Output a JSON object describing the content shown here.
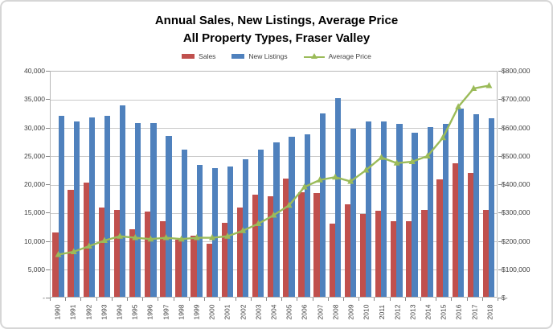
{
  "title": {
    "line1": "Annual Sales, New Listings, Average Price",
    "line2": "All Property Types, Fraser Valley"
  },
  "legend": {
    "items": [
      {
        "label": "Sales",
        "color": "#C0504D",
        "icon": "bar-swatch"
      },
      {
        "label": "New Listings",
        "color": "#4F81BD",
        "icon": "bar-swatch"
      },
      {
        "label": "Average Price",
        "color": "#9BBB59",
        "icon": "line-marker"
      }
    ]
  },
  "axes": {
    "left_ticks": [
      "40,000",
      "35,000",
      "30,000",
      "25,000",
      "20,000",
      "15,000",
      "10,000",
      "5,000",
      "-"
    ],
    "right_ticks": [
      "$800,000",
      "$700,000",
      "$600,000",
      "$500,000",
      "$400,000",
      "$300,000",
      "$200,000",
      "$100,000",
      "$-"
    ]
  },
  "colors": {
    "sales": "#C0504D",
    "new_listings": "#4F81BD",
    "average_price": "#9BBB59",
    "gridline": "#C9C9C9",
    "axis_text": "#3F3F3F"
  },
  "chart_data": {
    "type": "bar",
    "subtype": "grouped-bars-with-line-overlay",
    "title": "Annual Sales, New Listings, Average Price — All Property Types, Fraser Valley",
    "categories": [
      1990,
      1991,
      1992,
      1993,
      1994,
      1995,
      1996,
      1997,
      1998,
      1999,
      2000,
      2001,
      2002,
      2003,
      2004,
      2005,
      2006,
      2007,
      2008,
      2009,
      2010,
      2011,
      2012,
      2013,
      2014,
      2015,
      2016,
      2017,
      2018
    ],
    "series": [
      {
        "name": "Sales",
        "type": "bar",
        "axis": "left",
        "color": "#C0504D",
        "values": [
          11500,
          19000,
          20300,
          15900,
          15400,
          12000,
          15200,
          13400,
          10100,
          10900,
          9500,
          13200,
          15900,
          18100,
          17800,
          21000,
          18600,
          18500,
          13000,
          16400,
          14700,
          15300,
          13500,
          13400,
          15500,
          20900,
          23700,
          22000,
          15400
        ]
      },
      {
        "name": "New Listings",
        "type": "bar",
        "axis": "left",
        "color": "#4F81BD",
        "values": [
          32100,
          31200,
          31900,
          32100,
          34000,
          30800,
          30900,
          28600,
          26100,
          23500,
          22900,
          23100,
          24400,
          26100,
          27500,
          28500,
          28800,
          32600,
          35300,
          29800,
          31100,
          31200,
          30700,
          29100,
          30200,
          30700,
          33400,
          32400,
          31700
        ]
      },
      {
        "name": "Average Price",
        "type": "line",
        "axis": "right",
        "color": "#9BBB59",
        "marker": "triangle",
        "values": [
          150000,
          160000,
          180000,
          200000,
          215000,
          210000,
          205000,
          210000,
          205000,
          210000,
          210000,
          215000,
          235000,
          260000,
          290000,
          325000,
          390000,
          415000,
          425000,
          410000,
          450000,
          495000,
          475000,
          480000,
          500000,
          565000,
          675000,
          740000,
          750000
        ]
      }
    ],
    "left_axis_range": [
      0,
      40000
    ],
    "left_axis_step": 5000,
    "right_axis_range": [
      0,
      800000
    ],
    "right_axis_step": 100000,
    "grid": true,
    "legend_position": "top"
  }
}
